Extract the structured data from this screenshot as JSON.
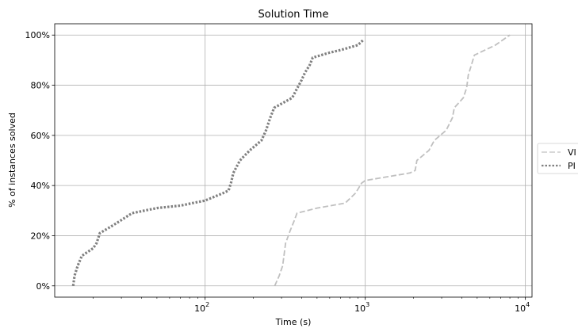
{
  "chart_data": {
    "type": "line",
    "title": "Solution Time",
    "xlabel": "Time (s)",
    "ylabel": "% of instances solved",
    "xscale": "log",
    "xlim": [
      11.5,
      11000
    ],
    "ylim": [
      -4.5,
      104.5
    ],
    "grid": true,
    "legend_position": "right outside",
    "x_ticks": [
      {
        "value": 100,
        "base": "10",
        "exp": "2"
      },
      {
        "value": 1000,
        "base": "10",
        "exp": "3"
      },
      {
        "value": 10000,
        "base": "10",
        "exp": "4"
      }
    ],
    "y_ticks": [
      {
        "value": 0,
        "label": "0%"
      },
      {
        "value": 20,
        "label": "20%"
      },
      {
        "value": 40,
        "label": "40%"
      },
      {
        "value": 60,
        "label": "60%"
      },
      {
        "value": 80,
        "label": "80%"
      },
      {
        "value": 100,
        "label": "100%"
      }
    ],
    "series": [
      {
        "name": "VI",
        "style": "dashed",
        "color": "#c0c0c0",
        "points": [
          [
            272,
            0
          ],
          [
            290,
            4
          ],
          [
            305,
            8
          ],
          [
            318,
            17
          ],
          [
            340,
            22
          ],
          [
            360,
            26
          ],
          [
            375,
            29
          ],
          [
            500,
            31
          ],
          [
            750,
            33
          ],
          [
            870,
            37
          ],
          [
            950,
            41
          ],
          [
            1000,
            42
          ],
          [
            1900,
            45
          ],
          [
            2050,
            46
          ],
          [
            2100,
            50
          ],
          [
            2500,
            54
          ],
          [
            2700,
            58
          ],
          [
            3200,
            62
          ],
          [
            3500,
            67
          ],
          [
            3600,
            71
          ],
          [
            4100,
            75
          ],
          [
            4300,
            79
          ],
          [
            4400,
            84
          ],
          [
            4600,
            88
          ],
          [
            4800,
            92
          ],
          [
            6500,
            96
          ],
          [
            8000,
            100
          ]
        ]
      },
      {
        "name": "PI",
        "style": "dotted",
        "color": "#808080",
        "points": [
          [
            15,
            0
          ],
          [
            15.3,
            4
          ],
          [
            16,
            8
          ],
          [
            17,
            12
          ],
          [
            20,
            15
          ],
          [
            21,
            17
          ],
          [
            22,
            21
          ],
          [
            28,
            25
          ],
          [
            35,
            29
          ],
          [
            50,
            31
          ],
          [
            70,
            32
          ],
          [
            100,
            34
          ],
          [
            130,
            37
          ],
          [
            140,
            38
          ],
          [
            145,
            41
          ],
          [
            150,
            45
          ],
          [
            165,
            50
          ],
          [
            190,
            54
          ],
          [
            225,
            58
          ],
          [
            240,
            62
          ],
          [
            255,
            67
          ],
          [
            270,
            71
          ],
          [
            350,
            75
          ],
          [
            370,
            78
          ],
          [
            400,
            82
          ],
          [
            420,
            85
          ],
          [
            450,
            88
          ],
          [
            470,
            91
          ],
          [
            600,
            93
          ],
          [
            700,
            94
          ],
          [
            900,
            96
          ],
          [
            970,
            98
          ]
        ]
      }
    ]
  }
}
